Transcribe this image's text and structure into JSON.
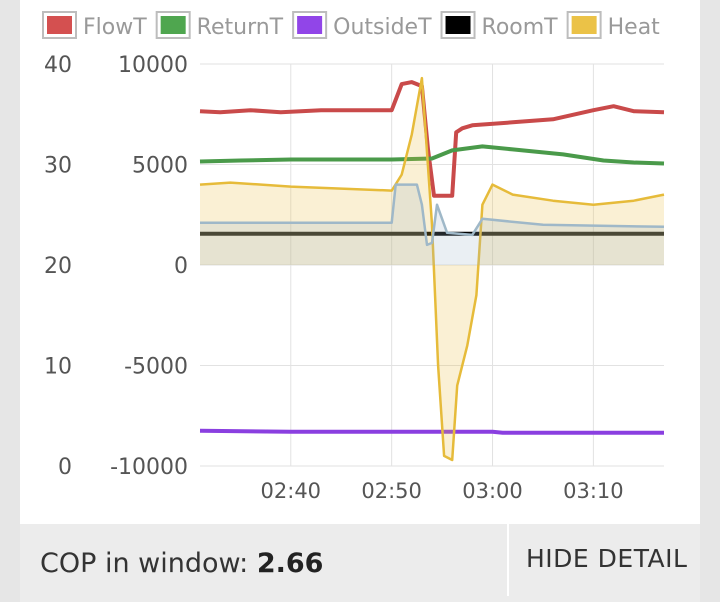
{
  "chart_data": {
    "type": "line",
    "legend": {
      "position": "top",
      "items": [
        {
          "label": "FlowT",
          "color": "#c94a4a",
          "fill": "#d45050"
        },
        {
          "label": "ReturnT",
          "color": "#4a9a4a",
          "fill": "#4fa64f"
        },
        {
          "label": "OutsideT",
          "color": "#8a3fe0",
          "fill": "#9145e8"
        },
        {
          "label": "RoomT",
          "color": "#000000",
          "fill": "#000000"
        },
        {
          "label": "Heat",
          "color": "#e6bb3a",
          "fill": "#ebc247"
        }
      ]
    },
    "y_left": {
      "range": [
        0,
        40
      ],
      "ticks": [
        "40",
        "30",
        "20",
        "10",
        "0"
      ]
    },
    "y_right": {
      "range": [
        -10000,
        10000
      ],
      "ticks": [
        "10000",
        "5000",
        "0",
        "-5000",
        "-10000"
      ]
    },
    "x_axis": {
      "range": [
        "02:31",
        "03:17"
      ],
      "ticks": [
        "02:40",
        "02:50",
        "03:00",
        "03:10"
      ]
    },
    "grid": true,
    "series": [
      {
        "name": "FlowT",
        "axis": "left",
        "color": "#c94a4a",
        "style": "line",
        "points": [
          [
            "02:31",
            35.3
          ],
          [
            "02:33",
            35.2
          ],
          [
            "02:36",
            35.4
          ],
          [
            "02:39",
            35.2
          ],
          [
            "02:43",
            35.4
          ],
          [
            "02:47",
            35.4
          ],
          [
            "02:50",
            35.4
          ],
          [
            "02:51",
            38.0
          ],
          [
            "02:52",
            38.2
          ],
          [
            "02:53",
            37.8
          ],
          [
            "02:53.6",
            31.5
          ],
          [
            "02:54.2",
            26.9
          ],
          [
            "02:56",
            26.9
          ],
          [
            "02:56.4",
            33.2
          ],
          [
            "02:57",
            33.6
          ],
          [
            "02:58",
            33.9
          ],
          [
            "03:02",
            34.2
          ],
          [
            "03:06",
            34.5
          ],
          [
            "03:10",
            35.4
          ],
          [
            "03:12",
            35.8
          ],
          [
            "03:14",
            35.3
          ],
          [
            "03:17",
            35.2
          ]
        ]
      },
      {
        "name": "ReturnT",
        "axis": "left",
        "color": "#4a9a4a",
        "style": "line",
        "points": [
          [
            "02:31",
            30.3
          ],
          [
            "02:35",
            30.4
          ],
          [
            "02:40",
            30.5
          ],
          [
            "02:45",
            30.5
          ],
          [
            "02:50",
            30.5
          ],
          [
            "02:54",
            30.6
          ],
          [
            "02:56",
            31.4
          ],
          [
            "02:59",
            31.8
          ],
          [
            "03:02",
            31.5
          ],
          [
            "03:07",
            31.0
          ],
          [
            "03:11",
            30.4
          ],
          [
            "03:14",
            30.2
          ],
          [
            "03:17",
            30.1
          ]
        ]
      },
      {
        "name": "OutsideT",
        "axis": "left",
        "color": "#8a3fe0",
        "style": "line",
        "points": [
          [
            "02:31",
            3.5
          ],
          [
            "02:40",
            3.4
          ],
          [
            "02:50",
            3.4
          ],
          [
            "03:00",
            3.4
          ],
          [
            "03:01",
            3.3
          ],
          [
            "03:10",
            3.3
          ],
          [
            "03:17",
            3.3
          ]
        ]
      },
      {
        "name": "RoomT",
        "axis": "left",
        "color": "#000000",
        "style": "line",
        "points": [
          [
            "02:31",
            23.1
          ],
          [
            "03:17",
            23.1
          ]
        ]
      },
      {
        "name": "Heat",
        "axis": "right",
        "color": "#e6bb3a",
        "style": "area",
        "points": [
          [
            "02:31",
            4000
          ],
          [
            "02:34",
            4100
          ],
          [
            "02:40",
            3900
          ],
          [
            "02:45",
            3800
          ],
          [
            "02:50",
            3700
          ],
          [
            "02:51",
            4500
          ],
          [
            "02:52",
            6500
          ],
          [
            "02:53",
            9300
          ],
          [
            "02:54",
            2000
          ],
          [
            "02:54.6",
            -5000
          ],
          [
            "02:55.2",
            -9500
          ],
          [
            "02:56",
            -9700
          ],
          [
            "02:56.5",
            -6000
          ],
          [
            "02:57.5",
            -4000
          ],
          [
            "02:58.4",
            -1500
          ],
          [
            "02:59",
            3000
          ],
          [
            "03:00",
            4000
          ],
          [
            "03:02",
            3500
          ],
          [
            "03:06",
            3200
          ],
          [
            "03:10",
            3000
          ],
          [
            "03:14",
            3200
          ],
          [
            "03:17",
            3500
          ]
        ]
      },
      {
        "name": "",
        "axis": "right",
        "color": "#9fb8c8",
        "style": "area",
        "points": [
          [
            "02:31",
            2100
          ],
          [
            "02:40",
            2100
          ],
          [
            "02:49",
            2100
          ],
          [
            "02:50",
            2100
          ],
          [
            "02:50.4",
            4000
          ],
          [
            "02:52.5",
            4000
          ],
          [
            "02:53",
            3000
          ],
          [
            "02:53.5",
            1000
          ],
          [
            "02:54",
            1100
          ],
          [
            "02:54.5",
            3000
          ],
          [
            "02:55.5",
            1600
          ],
          [
            "02:58",
            1500
          ],
          [
            "02:59",
            2300
          ],
          [
            "03:05",
            2000
          ],
          [
            "03:17",
            1900
          ]
        ]
      }
    ]
  },
  "footer": {
    "cop_label": "COP in window:",
    "cop_value": "2.66",
    "hide_detail_label": "HIDE DETAIL"
  }
}
